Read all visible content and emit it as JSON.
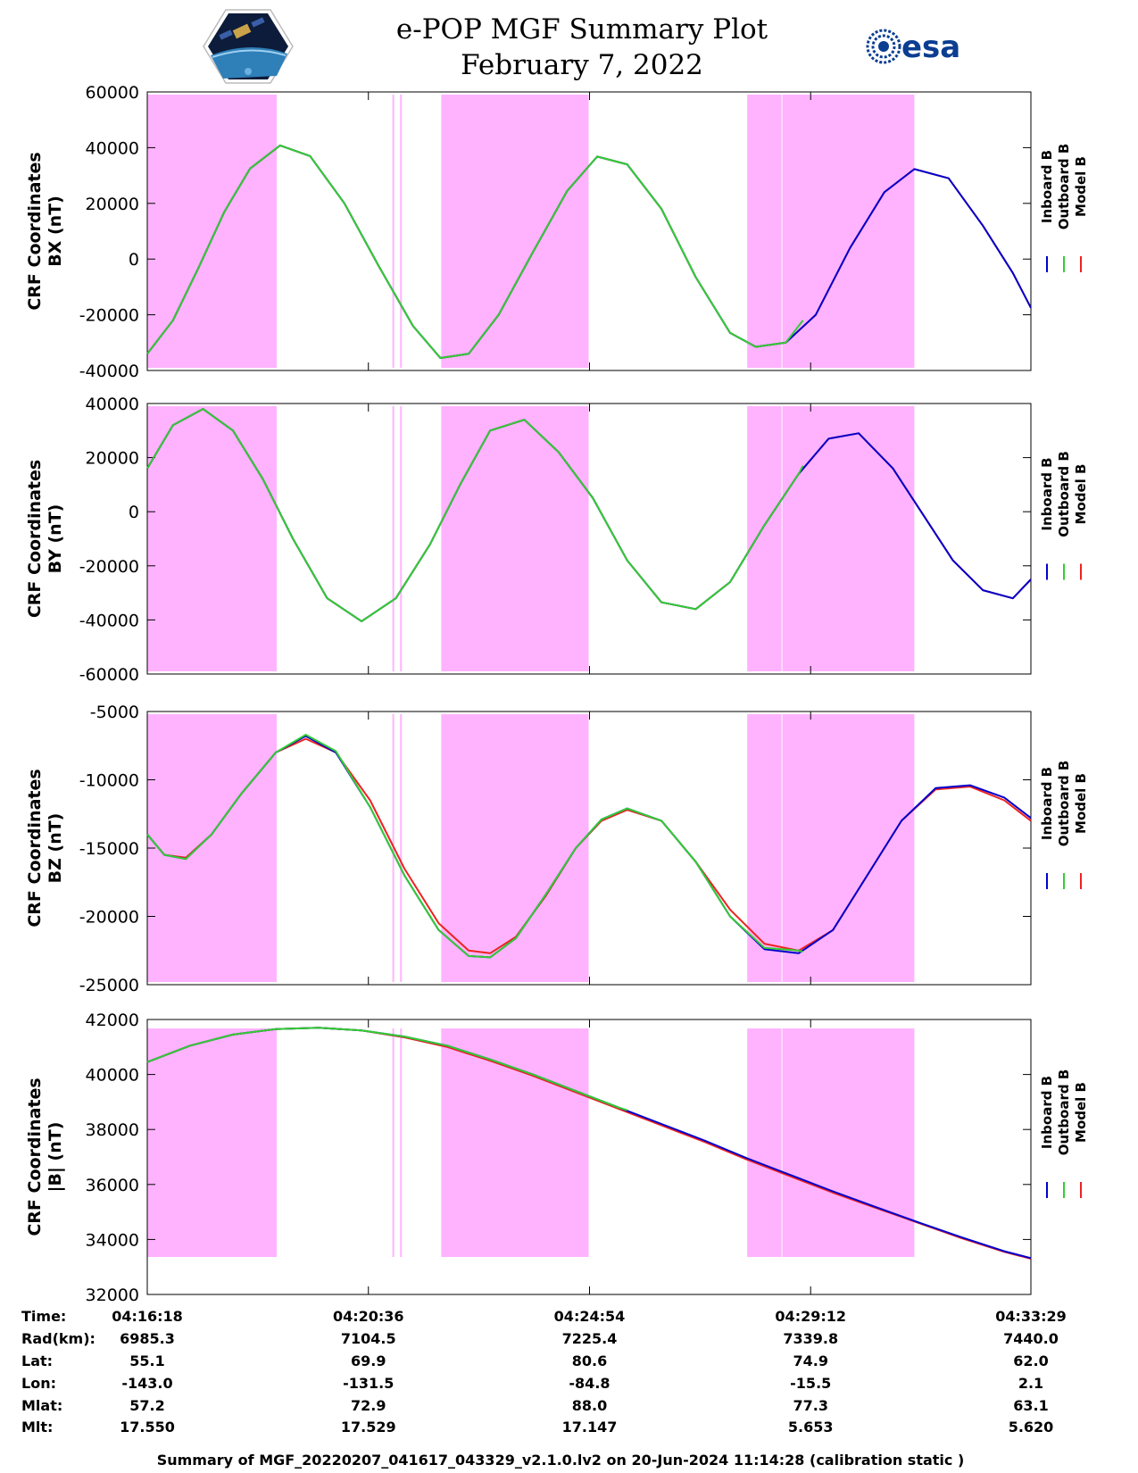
{
  "title_line1": "e-POP MGF Summary Plot",
  "title_line2": "February 7, 2022",
  "left_logo": "satellite-badge",
  "right_logo_text": "esa",
  "colors": {
    "inboard": "#0000cc",
    "outboard": "#33cc33",
    "model": "#ee2222",
    "shade": "#ffb3ff"
  },
  "chart_data": {
    "type": "line",
    "time_range_seconds": [
      0,
      1031
    ],
    "time_ticks_seconds": [
      0,
      258,
      516,
      774,
      1031
    ],
    "shaded_intervals_seconds": [
      [
        0,
        151
      ],
      [
        286,
        288
      ],
      [
        295,
        297
      ],
      [
        343,
        515
      ],
      [
        700,
        740
      ],
      [
        741,
        895
      ]
    ],
    "outboard_ends_at_seconds": [
      765,
      765,
      765,
      560
    ],
    "legend": [
      "Inboard B",
      "Outboard B",
      "Model B"
    ],
    "panels": [
      {
        "ylabel_line1": "CRF Coordinates",
        "ylabel_line2": "BX (nT)",
        "ylim": [
          -40000,
          60000
        ],
        "yticks": [
          60000,
          40000,
          20000,
          0,
          -20000,
          -40000
        ],
        "series": [
          {
            "name": "Model B",
            "x": [
              0,
              30,
              60,
              90,
              120,
              155,
              190,
              230,
              270,
              310,
              342,
              375,
              410,
              450,
              490,
              525,
              560,
              600,
              640,
              680,
              710,
              745,
              780,
              820,
              860,
              895,
              935,
              975,
              1010,
              1031
            ],
            "y": [
              -34000,
              -22000,
              -3000,
              17000,
              32500,
              40800,
              37000,
              20000,
              -2500,
              -24000,
              -35500,
              -34000,
              -20000,
              2500,
              24500,
              36800,
              34000,
              18000,
              -6500,
              -26500,
              -31500,
              -30000,
              -20000,
              4000,
              24000,
              32300,
              29000,
              12000,
              -5000,
              -17500
            ]
          },
          {
            "name": "Inboard B",
            "x": [
              0,
              30,
              60,
              90,
              120,
              155,
              190,
              230,
              270,
              310,
              342,
              375,
              410,
              450,
              490,
              525,
              560,
              600,
              640,
              680,
              710,
              745,
              780,
              820,
              860,
              895,
              935,
              975,
              1010,
              1031
            ],
            "y": [
              -34000,
              -22000,
              -3000,
              17000,
              32500,
              40800,
              37000,
              20000,
              -2500,
              -24000,
              -35500,
              -34000,
              -20000,
              2500,
              24500,
              36800,
              34000,
              18000,
              -6500,
              -26500,
              -31500,
              -30000,
              -20000,
              4000,
              24000,
              32300,
              29000,
              12000,
              -5000,
              -17500
            ]
          },
          {
            "name": "Outboard B",
            "x": [
              0,
              30,
              60,
              90,
              120,
              155,
              190,
              230,
              270,
              310,
              342,
              375,
              410,
              450,
              490,
              525,
              560,
              600,
              640,
              680,
              710,
              745,
              765
            ],
            "y": [
              -34000,
              -22000,
              -3000,
              17000,
              32500,
              40800,
              37000,
              20000,
              -2500,
              -24000,
              -35500,
              -34000,
              -20000,
              2500,
              24500,
              36800,
              34000,
              18000,
              -6500,
              -26500,
              -31500,
              -30000,
              -22000
            ]
          }
        ]
      },
      {
        "ylabel_line1": "CRF Coordinates",
        "ylabel_line2": "BY (nT)",
        "ylim": [
          -60000,
          40000
        ],
        "yticks": [
          40000,
          20000,
          0,
          -20000,
          -40000,
          -60000
        ],
        "series": [
          {
            "name": "Model B",
            "x": [
              0,
              30,
              65,
              100,
              135,
              170,
              210,
              250,
              290,
              330,
              365,
              400,
              440,
              480,
              520,
              560,
              600,
              640,
              680,
              720,
              760,
              795,
              830,
              870,
              905,
              940,
              975,
              1010,
              1031
            ],
            "y": [
              16000,
              32000,
              38000,
              30000,
              12000,
              -10000,
              -32000,
              -40500,
              -32000,
              -12000,
              10000,
              30000,
              34000,
              22000,
              5000,
              -18000,
              -33500,
              -36000,
              -26000,
              -5000,
              14000,
              27000,
              29000,
              16000,
              -1000,
              -18000,
              -29000,
              -32000,
              -25000
            ]
          },
          {
            "name": "Inboard B",
            "x": [
              0,
              30,
              65,
              100,
              135,
              170,
              210,
              250,
              290,
              330,
              365,
              400,
              440,
              480,
              520,
              560,
              600,
              640,
              680,
              720,
              760,
              795,
              830,
              870,
              905,
              940,
              975,
              1010,
              1031
            ],
            "y": [
              16000,
              32000,
              38000,
              30000,
              12000,
              -10000,
              -32000,
              -40500,
              -32000,
              -12000,
              10000,
              30000,
              34000,
              22000,
              5000,
              -18000,
              -33500,
              -36000,
              -26000,
              -5000,
              14000,
              27000,
              29000,
              16000,
              -1000,
              -18000,
              -29000,
              -32000,
              -25000
            ]
          },
          {
            "name": "Outboard B",
            "x": [
              0,
              30,
              65,
              100,
              135,
              170,
              210,
              250,
              290,
              330,
              365,
              400,
              440,
              480,
              520,
              560,
              600,
              640,
              680,
              720,
              760,
              765
            ],
            "y": [
              16000,
              32000,
              38000,
              30000,
              12000,
              -10000,
              -32000,
              -40500,
              -32000,
              -12000,
              10000,
              30000,
              34000,
              22000,
              5000,
              -18000,
              -33500,
              -36000,
              -26000,
              -5000,
              14000,
              17000
            ]
          }
        ]
      },
      {
        "ylabel_line1": "CRF Coordinates",
        "ylabel_line2": "BZ (nT)",
        "ylim": [
          -25000,
          -5000
        ],
        "yticks": [
          -5000,
          -10000,
          -15000,
          -20000,
          -25000
        ],
        "series": [
          {
            "name": "Model B",
            "x": [
              0,
              20,
              45,
              75,
              110,
              150,
              185,
              220,
              260,
              300,
              340,
              375,
              400,
              430,
              465,
              500,
              530,
              560,
              600,
              640,
              680,
              720,
              760,
              800,
              840,
              880,
              920,
              960,
              1000,
              1031
            ],
            "y": [
              -14000,
              -15500,
              -15700,
              -14000,
              -11000,
              -8000,
              -7000,
              -8000,
              -11500,
              -16500,
              -20500,
              -22500,
              -22700,
              -21500,
              -18500,
              -15000,
              -13000,
              -12200,
              -13000,
              -16000,
              -19500,
              -22000,
              -22500,
              -21000,
              -17000,
              -13000,
              -10700,
              -10500,
              -11500,
              -13000
            ]
          },
          {
            "name": "Inboard B",
            "x": [
              0,
              20,
              45,
              75,
              110,
              150,
              185,
              220,
              260,
              300,
              340,
              375,
              400,
              430,
              465,
              500,
              530,
              560,
              600,
              640,
              680,
              720,
              760,
              800,
              840,
              880,
              920,
              960,
              1000,
              1031
            ],
            "y": [
              -14000,
              -15500,
              -15800,
              -14000,
              -11000,
              -8000,
              -6800,
              -8000,
              -12000,
              -17000,
              -21000,
              -22900,
              -23000,
              -21600,
              -18400,
              -15000,
              -12900,
              -12100,
              -13000,
              -16000,
              -20000,
              -22400,
              -22700,
              -21000,
              -17000,
              -13000,
              -10600,
              -10400,
              -11300,
              -12800
            ]
          },
          {
            "name": "Outboard B",
            "x": [
              0,
              20,
              45,
              75,
              110,
              150,
              185,
              220,
              260,
              300,
              340,
              375,
              400,
              430,
              465,
              500,
              530,
              560,
              600,
              640,
              680,
              720,
              760,
              765
            ],
            "y": [
              -14000,
              -15500,
              -15800,
              -14000,
              -11000,
              -8000,
              -6700,
              -7900,
              -12000,
              -17000,
              -21000,
              -22900,
              -23000,
              -21600,
              -18400,
              -15000,
              -12900,
              -12100,
              -13000,
              -16000,
              -20000,
              -22300,
              -22500,
              -22600
            ]
          }
        ]
      },
      {
        "ylabel_line1": "CRF Coordinates",
        "ylabel_line2": "|B| (nT)",
        "ylim": [
          32000,
          42000
        ],
        "yticks": [
          42000,
          40000,
          38000,
          36000,
          34000,
          32000
        ],
        "series": [
          {
            "name": "Model B",
            "x": [
              0,
              50,
              100,
              150,
              200,
              250,
              300,
              350,
              400,
              450,
              500,
              550,
              600,
              650,
              700,
              750,
              800,
              850,
              900,
              950,
              1000,
              1031
            ],
            "y": [
              40450,
              41050,
              41450,
              41650,
              41700,
              41600,
              41350,
              41000,
              40500,
              39950,
              39350,
              38750,
              38150,
              37550,
              36900,
              36300,
              35700,
              35150,
              34600,
              34050,
              33550,
              33300
            ]
          },
          {
            "name": "Inboard B",
            "x": [
              0,
              50,
              100,
              150,
              200,
              250,
              300,
              350,
              400,
              450,
              500,
              550,
              600,
              650,
              700,
              750,
              800,
              850,
              900,
              950,
              1000,
              1031
            ],
            "y": [
              40450,
              41050,
              41450,
              41650,
              41700,
              41600,
              41380,
              41050,
              40550,
              40000,
              39400,
              38800,
              38200,
              37600,
              36950,
              36350,
              35750,
              35180,
              34620,
              34080,
              33570,
              33320
            ]
          },
          {
            "name": "Outboard B",
            "x": [
              0,
              50,
              100,
              150,
              200,
              250,
              300,
              350,
              400,
              450,
              500,
              550,
              560
            ],
            "y": [
              40450,
              41050,
              41450,
              41650,
              41700,
              41600,
              41380,
              41050,
              40550,
              40000,
              39400,
              38800,
              38700
            ]
          }
        ]
      }
    ]
  },
  "info_table": {
    "labels": [
      "Time:",
      "Rad(km):",
      "Lat:",
      "Lon:",
      "Mlat:",
      "Mlt:"
    ],
    "columns": [
      [
        "04:16:18",
        "6985.3",
        "55.1",
        "-143.0",
        "57.2",
        "17.550"
      ],
      [
        "04:20:36",
        "7104.5",
        "69.9",
        "-131.5",
        "72.9",
        "17.529"
      ],
      [
        "04:24:54",
        "7225.4",
        "80.6",
        "-84.8",
        "88.0",
        "17.147"
      ],
      [
        "04:29:12",
        "7339.8",
        "74.9",
        "-15.5",
        "77.3",
        "5.653"
      ],
      [
        "04:33:29",
        "7440.0",
        "62.0",
        "2.1",
        "63.1",
        "5.620"
      ]
    ]
  },
  "footer": "Summary of MGF_20220207_041617_043329_v2.1.0.lv2 on 20-Jun-2024 11:14:28 (calibration static )"
}
